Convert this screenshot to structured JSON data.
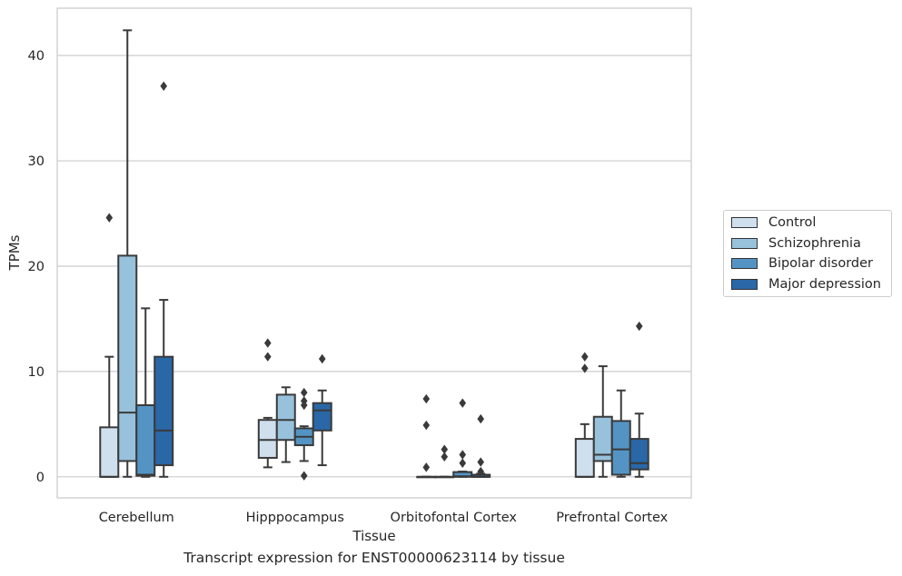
{
  "caption": "Transcript expression for ENST00000623114 by tissue",
  "colors": {
    "Control": "#cfdfee",
    "Schizophrenia": "#98c1dc",
    "Bipolar disorder": "#5494c4",
    "Major depression": "#2967a7",
    "grid": "#cccccc",
    "frame": "#cccccc",
    "box_edge": "#3a3a3a"
  },
  "chart_data": {
    "type": "boxplot",
    "xlabel": "Tissue",
    "ylabel": "TPMs",
    "ylim": [
      -2,
      44.5
    ],
    "yticks": [
      0,
      10,
      20,
      30,
      40
    ],
    "grid": "horizontal",
    "legend_position": "right",
    "categories": [
      "Cerebellum",
      "Hipppocampus",
      "Orbitofontal Cortex",
      "Prefrontal Cortex"
    ],
    "series": [
      {
        "name": "Control",
        "boxes": [
          {
            "q1": 0,
            "median": 0,
            "q3": 4.7,
            "whisker_low": 0,
            "whisker_high": 11.4,
            "outliers": [
              24.6
            ]
          },
          {
            "q1": 1.8,
            "median": 3.5,
            "q3": 5.4,
            "whisker_low": 0.9,
            "whisker_high": 5.6,
            "outliers": [
              11.4,
              12.7
            ]
          },
          {
            "q1": 0,
            "median": 0,
            "q3": 0,
            "whisker_low": 0,
            "whisker_high": 0,
            "outliers": [
              0.9,
              4.9,
              7.4
            ]
          },
          {
            "q1": 0,
            "median": 0,
            "q3": 3.6,
            "whisker_low": 0,
            "whisker_high": 5.0,
            "outliers": [
              10.3,
              11.4
            ]
          }
        ]
      },
      {
        "name": "Schizophrenia",
        "boxes": [
          {
            "q1": 1.5,
            "median": 6.1,
            "q3": 21.0,
            "whisker_low": 0,
            "whisker_high": 42.4,
            "outliers": []
          },
          {
            "q1": 3.5,
            "median": 5.4,
            "q3": 7.8,
            "whisker_low": 1.4,
            "whisker_high": 8.5,
            "outliers": []
          },
          {
            "q1": 0,
            "median": 0,
            "q3": 0,
            "whisker_low": 0,
            "whisker_high": 0,
            "outliers": [
              1.9,
              2.6
            ]
          },
          {
            "q1": 1.5,
            "median": 2.1,
            "q3": 5.7,
            "whisker_low": 0,
            "whisker_high": 10.5,
            "outliers": []
          }
        ]
      },
      {
        "name": "Bipolar disorder",
        "boxes": [
          {
            "q1": 0.1,
            "median": 0.2,
            "q3": 6.8,
            "whisker_low": 0,
            "whisker_high": 16.0,
            "outliers": []
          },
          {
            "q1": 3.0,
            "median": 3.8,
            "q3": 4.6,
            "whisker_low": 1.5,
            "whisker_high": 4.8,
            "outliers": [
              0.1,
              6.8,
              7.2,
              8.0
            ]
          },
          {
            "q1": 0,
            "median": 0.05,
            "q3": 0.45,
            "whisker_low": 0,
            "whisker_high": 0.5,
            "outliers": [
              1.3,
              2.1,
              7.0
            ]
          },
          {
            "q1": 0.2,
            "median": 2.6,
            "q3": 5.3,
            "whisker_low": 0,
            "whisker_high": 8.2,
            "outliers": []
          }
        ]
      },
      {
        "name": "Major depression",
        "boxes": [
          {
            "q1": 1.1,
            "median": 4.4,
            "q3": 11.4,
            "whisker_low": 0,
            "whisker_high": 16.8,
            "outliers": [
              37.1
            ]
          },
          {
            "q1": 4.4,
            "median": 6.3,
            "q3": 7.0,
            "whisker_low": 1.1,
            "whisker_high": 8.2,
            "outliers": [
              11.2
            ]
          },
          {
            "q1": 0,
            "median": 0,
            "q3": 0.2,
            "whisker_low": 0,
            "whisker_high": 0.3,
            "outliers": [
              0.5,
              1.4,
              5.5
            ]
          },
          {
            "q1": 0.7,
            "median": 1.3,
            "q3": 3.6,
            "whisker_low": 0,
            "whisker_high": 6.0,
            "outliers": [
              14.3
            ]
          }
        ]
      }
    ]
  }
}
